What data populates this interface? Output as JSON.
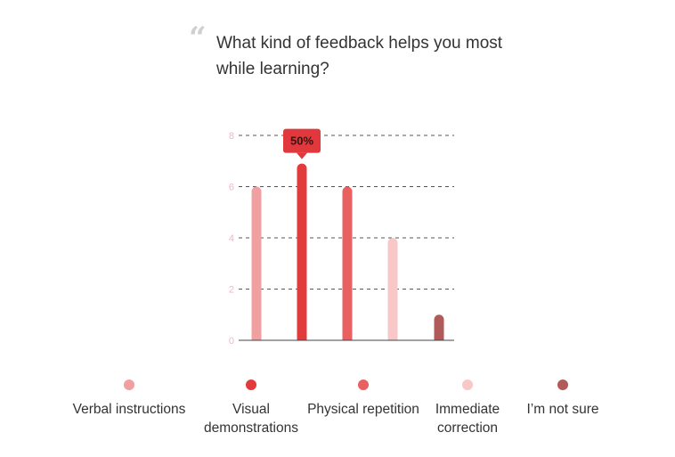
{
  "question": {
    "quote_glyph": "“",
    "text": "What kind of feedback helps you most while learning?"
  },
  "chart_data": {
    "type": "bar",
    "title": "What kind of feedback helps you most while learning?",
    "categories": [
      "Verbal instructions",
      "Visual demonstrations",
      "Physical repetition",
      "Immediate correction",
      "I’m not sure"
    ],
    "values": [
      6,
      6.9,
      6,
      4,
      1
    ],
    "colors": [
      "#f0a0a0",
      "#e23b3b",
      "#e86060",
      "#f8c8c8",
      "#b05a5a"
    ],
    "ylim": [
      0,
      8
    ],
    "yticks": [
      0,
      2,
      4,
      6,
      8
    ],
    "grid": true,
    "highlight": {
      "index": 1,
      "label": "50%"
    },
    "legend_position": "bottom"
  }
}
